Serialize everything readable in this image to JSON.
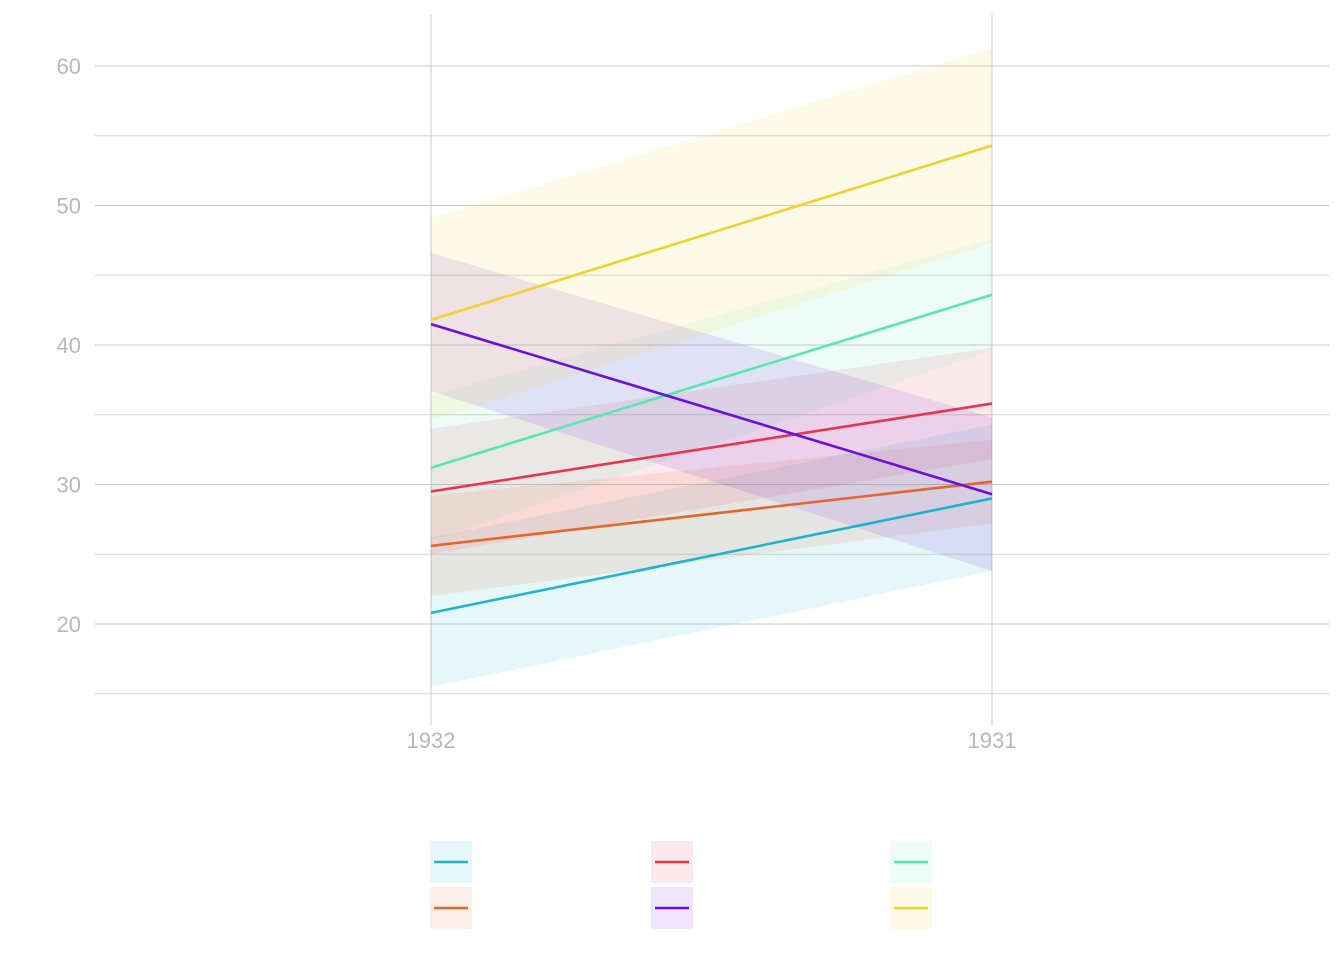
{
  "chart_data": {
    "type": "line",
    "title": "",
    "xlabel": "",
    "ylabel": "",
    "categories": [
      "1932",
      "1931"
    ],
    "ylim": [
      14.9,
      63.6
    ],
    "yticks": [
      20,
      30,
      40,
      50,
      60
    ],
    "yticks_labels": [
      "20",
      "30",
      "40",
      "50",
      "60"
    ],
    "grid": true,
    "legend_position": "bottom",
    "series": [
      {
        "color": "#1fb4cc",
        "values": [
          20.8,
          29.0
        ],
        "lower": [
          15.5,
          23.8
        ],
        "upper": [
          26.2,
          34.3
        ]
      },
      {
        "color": "#e8344f",
        "values": [
          29.5,
          35.8
        ],
        "lower": [
          25.0,
          31.8
        ],
        "upper": [
          34.0,
          39.8
        ]
      },
      {
        "color": "#57e8b0",
        "values": [
          31.2,
          43.6
        ],
        "lower": [
          26.0,
          39.6
        ],
        "upper": [
          36.4,
          47.6
        ]
      },
      {
        "color": "#e4662a",
        "values": [
          25.6,
          30.2
        ],
        "lower": [
          22.0,
          27.2
        ],
        "upper": [
          29.2,
          33.2
        ]
      },
      {
        "color": "#6a0fe0",
        "values": [
          41.5,
          29.3
        ],
        "lower": [
          36.7,
          23.8
        ],
        "upper": [
          46.6,
          34.8
        ]
      },
      {
        "color": "#f2d22e",
        "values": [
          41.8,
          54.3
        ],
        "lower": [
          34.6,
          47.3
        ],
        "upper": [
          49.1,
          61.3
        ]
      }
    ]
  }
}
